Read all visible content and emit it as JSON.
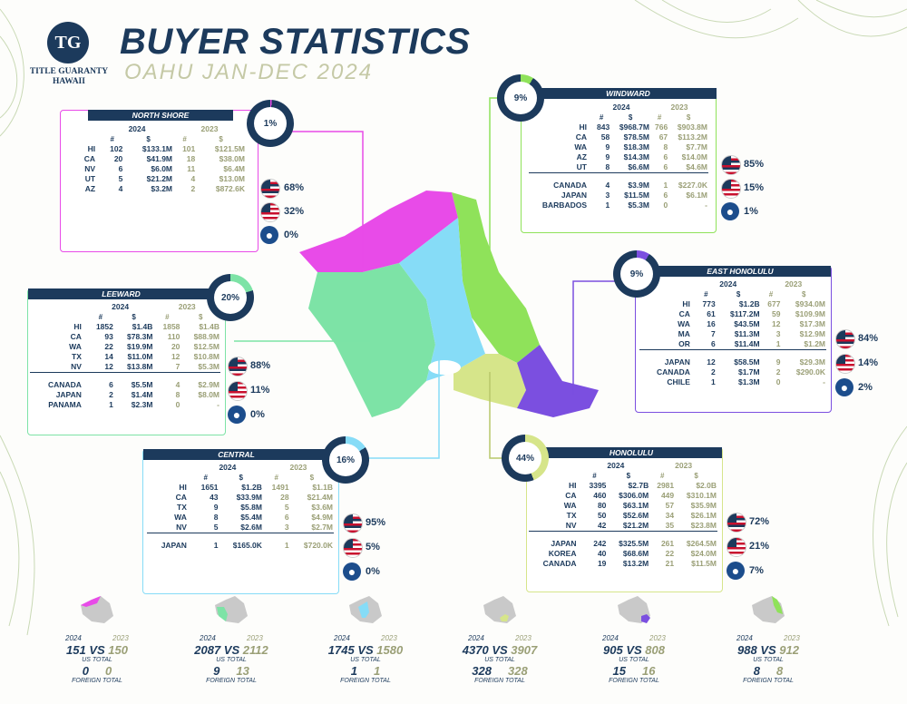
{
  "brand": {
    "logo_initials": "TG",
    "name_line1": "TITLE GUARANTY",
    "name_line2": "HAWAII"
  },
  "header": {
    "title": "BUYER STATISTICS",
    "subtitle": "OAHU JAN-DEC 2024"
  },
  "colors": {
    "navy": "#1c3a5c",
    "olive": "#9a9f76",
    "north_shore": "#e84be8",
    "windward": "#8fe25a",
    "leeward": "#7de3a6",
    "east_honolulu": "#7b4fe0",
    "central": "#86dcf7",
    "honolulu": "#d6e58a"
  },
  "labels": {
    "y2024": "2024",
    "y2023": "2023",
    "count": "#",
    "dollars": "$",
    "vs": "VS",
    "us_total": "US TOTAL",
    "foreign_total": "FOREIGN TOTAL"
  },
  "regions": {
    "north_shore": {
      "name": "NORTH SHORE",
      "ring_pct": "1%",
      "ring_value": 1,
      "rows": [
        [
          "HI",
          "102",
          "$133.1M",
          "101",
          "$121.5M"
        ],
        [
          "CA",
          "20",
          "$41.9M",
          "18",
          "$38.0M"
        ],
        [
          "NV",
          "6",
          "$6.0M",
          "11",
          "$6.4M"
        ],
        [
          "UT",
          "5",
          "$21.2M",
          "4",
          "$13.0M"
        ],
        [
          "AZ",
          "4",
          "$3.2M",
          "2",
          "$872.6K"
        ]
      ],
      "foreign": [],
      "pcts": {
        "hawaii": "68%",
        "us": "32%",
        "foreign": "0%"
      }
    },
    "windward": {
      "name": "WINDWARD",
      "ring_pct": "9%",
      "ring_value": 9,
      "rows": [
        [
          "HI",
          "843",
          "$968.7M",
          "766",
          "$903.8M"
        ],
        [
          "CA",
          "58",
          "$78.5M",
          "67",
          "$113.2M"
        ],
        [
          "WA",
          "9",
          "$18.3M",
          "8",
          "$7.7M"
        ],
        [
          "AZ",
          "9",
          "$14.3M",
          "6",
          "$14.0M"
        ],
        [
          "UT",
          "8",
          "$6.6M",
          "6",
          "$4.6M"
        ]
      ],
      "foreign": [
        [
          "CANADA",
          "4",
          "$3.9M",
          "1",
          "$227.0K"
        ],
        [
          "JAPAN",
          "3",
          "$11.5M",
          "6",
          "$6.1M"
        ],
        [
          "BARBADOS",
          "1",
          "$5.3M",
          "0",
          "-"
        ]
      ],
      "pcts": {
        "hawaii": "85%",
        "us": "15%",
        "foreign": "1%"
      }
    },
    "leeward": {
      "name": "LEEWARD",
      "ring_pct": "20%",
      "ring_value": 20,
      "rows": [
        [
          "HI",
          "1852",
          "$1.4B",
          "1858",
          "$1.4B"
        ],
        [
          "CA",
          "93",
          "$78.3M",
          "110",
          "$88.9M"
        ],
        [
          "WA",
          "22",
          "$19.9M",
          "20",
          "$12.5M"
        ],
        [
          "TX",
          "14",
          "$11.0M",
          "12",
          "$10.8M"
        ],
        [
          "NV",
          "12",
          "$13.8M",
          "7",
          "$5.3M"
        ]
      ],
      "foreign": [
        [
          "CANADA",
          "6",
          "$5.5M",
          "4",
          "$2.9M"
        ],
        [
          "JAPAN",
          "2",
          "$1.4M",
          "8",
          "$8.0M"
        ],
        [
          "PANAMA",
          "1",
          "$2.3M",
          "0",
          "-"
        ]
      ],
      "pcts": {
        "hawaii": "88%",
        "us": "11%",
        "foreign": "0%"
      }
    },
    "east_honolulu": {
      "name": "EAST HONOLULU",
      "ring_pct": "9%",
      "ring_value": 9,
      "rows": [
        [
          "HI",
          "773",
          "$1.2B",
          "677",
          "$934.0M"
        ],
        [
          "CA",
          "61",
          "$117.2M",
          "59",
          "$109.9M"
        ],
        [
          "WA",
          "16",
          "$43.5M",
          "12",
          "$17.3M"
        ],
        [
          "MA",
          "7",
          "$11.3M",
          "3",
          "$12.9M"
        ],
        [
          "OR",
          "6",
          "$11.4M",
          "1",
          "$1.2M"
        ]
      ],
      "foreign": [
        [
          "JAPAN",
          "12",
          "$58.5M",
          "9",
          "$29.3M"
        ],
        [
          "CANADA",
          "2",
          "$1.7M",
          "2",
          "$290.0K"
        ],
        [
          "CHILE",
          "1",
          "$1.3M",
          "0",
          "-"
        ]
      ],
      "pcts": {
        "hawaii": "84%",
        "us": "14%",
        "foreign": "2%"
      }
    },
    "central": {
      "name": "CENTRAL",
      "ring_pct": "16%",
      "ring_value": 16,
      "rows": [
        [
          "HI",
          "1651",
          "$1.2B",
          "1491",
          "$1.1B"
        ],
        [
          "CA",
          "43",
          "$33.9M",
          "28",
          "$21.4M"
        ],
        [
          "TX",
          "9",
          "$5.8M",
          "5",
          "$3.6M"
        ],
        [
          "WA",
          "8",
          "$5.4M",
          "6",
          "$4.9M"
        ],
        [
          "NV",
          "5",
          "$2.6M",
          "3",
          "$2.7M"
        ]
      ],
      "foreign": [
        [
          "JAPAN",
          "1",
          "$165.0K",
          "1",
          "$720.0K"
        ]
      ],
      "pcts": {
        "hawaii": "95%",
        "us": "5%",
        "foreign": "0%"
      }
    },
    "honolulu": {
      "name": "HONOLULU",
      "ring_pct": "44%",
      "ring_value": 44,
      "rows": [
        [
          "HI",
          "3395",
          "$2.7B",
          "2981",
          "$2.0B"
        ],
        [
          "CA",
          "460",
          "$306.0M",
          "449",
          "$310.1M"
        ],
        [
          "WA",
          "80",
          "$63.1M",
          "57",
          "$35.9M"
        ],
        [
          "TX",
          "50",
          "$52.6M",
          "34",
          "$26.1M"
        ],
        [
          "NV",
          "42",
          "$21.2M",
          "35",
          "$23.8M"
        ]
      ],
      "foreign": [
        [
          "JAPAN",
          "242",
          "$325.5M",
          "261",
          "$264.5M"
        ],
        [
          "KOREA",
          "40",
          "$68.6M",
          "22",
          "$24.0M"
        ],
        [
          "CANADA",
          "19",
          "$13.2M",
          "21",
          "$11.5M"
        ]
      ],
      "pcts": {
        "hawaii": "72%",
        "us": "21%",
        "foreign": "7%"
      }
    }
  },
  "summaries": [
    {
      "us_2024": "151",
      "us_2023": "150",
      "foreign_2024": "0",
      "foreign_2023": "0"
    },
    {
      "us_2024": "2087",
      "us_2023": "2112",
      "foreign_2024": "9",
      "foreign_2023": "13"
    },
    {
      "us_2024": "1745",
      "us_2023": "1580",
      "foreign_2024": "1",
      "foreign_2023": "1"
    },
    {
      "us_2024": "4370",
      "us_2023": "3907",
      "foreign_2024": "328",
      "foreign_2023": "328"
    },
    {
      "us_2024": "905",
      "us_2023": "808",
      "foreign_2024": "15",
      "foreign_2023": "16"
    },
    {
      "us_2024": "988",
      "us_2023": "912",
      "foreign_2024": "8",
      "foreign_2023": "8"
    }
  ]
}
